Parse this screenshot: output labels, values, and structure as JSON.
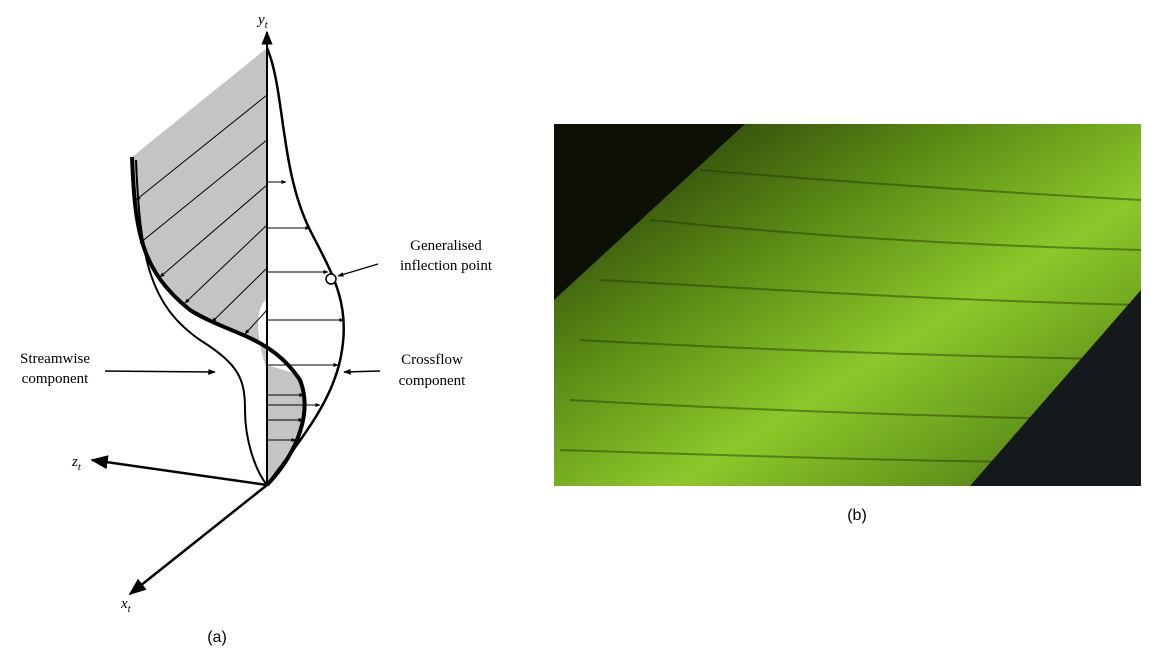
{
  "panel_a": {
    "axes": {
      "y": {
        "symbol": "y",
        "subscript": "t"
      },
      "z": {
        "symbol": "z",
        "subscript": "t"
      },
      "x": {
        "symbol": "x",
        "subscript": "t"
      }
    },
    "labels": {
      "inflection": [
        "Generalised",
        "inflection point"
      ],
      "streamwise": [
        "Streamwise",
        "component"
      ],
      "crossflow": [
        "Crossflow",
        "component"
      ]
    },
    "caption": "(a)"
  },
  "panel_b": {
    "caption": "(b)"
  }
}
